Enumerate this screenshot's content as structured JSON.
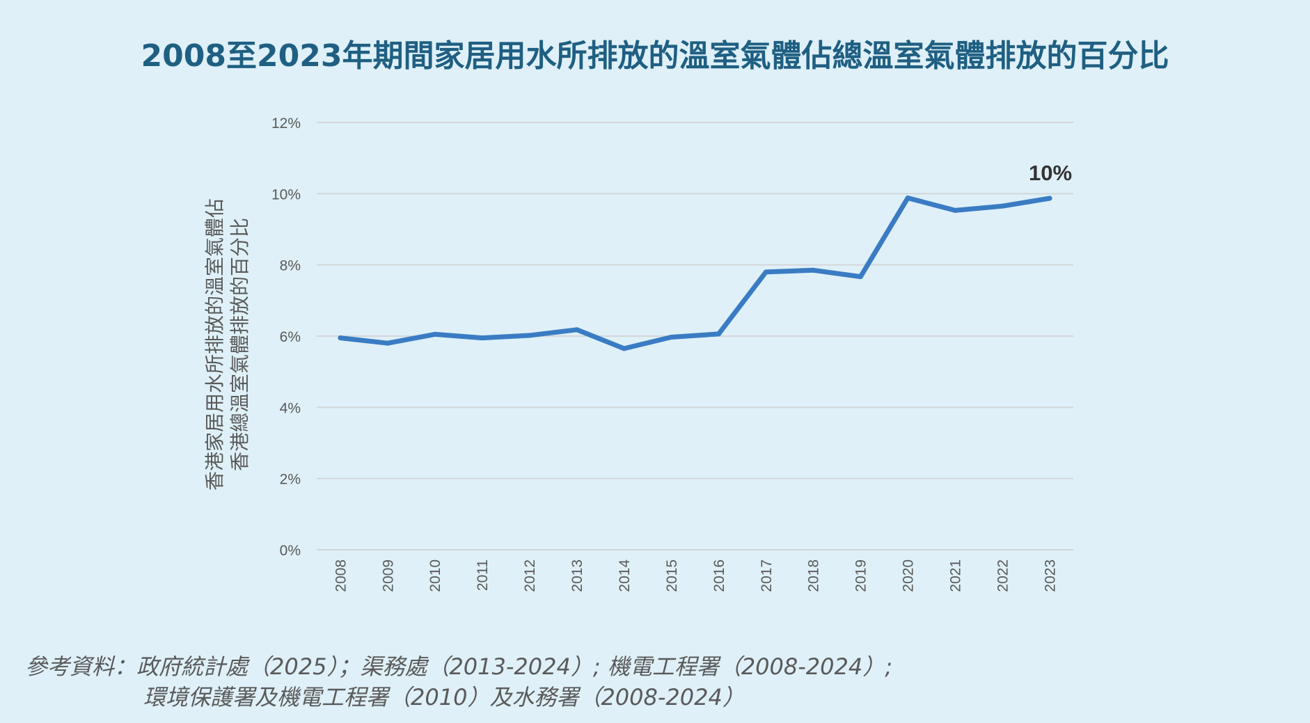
{
  "title": "2008至2023年期間家居用水所排放的溫室氣體佔總溫室氣體排放的百分比",
  "source": {
    "line1": "參考資料：政府統計處（2025）；渠務處（2013-2024）; 機電工程署（2008-2024）;",
    "line2": "環境保護署及機電工程署（2010）及水務署（2008-2024）"
  },
  "colors": {
    "background": "#dff0f8",
    "title": "#1f5f82",
    "line": "#3a7cc3",
    "grid": "#d3d6d9"
  },
  "chart_data": {
    "type": "line",
    "title": "2008至2023年期間家居用水所排放的溫室氣體佔總溫室氣體排放的百分比",
    "xlabel": "",
    "ylabel_lines": [
      "香港家居用水所排放的溫室氣體佔",
      "香港總溫室氣體排放的百分比"
    ],
    "categories": [
      "2008",
      "2009",
      "2010",
      "2011",
      "2012",
      "2013",
      "2014",
      "2015",
      "2016",
      "2017",
      "2018",
      "2019",
      "2020",
      "2021",
      "2022",
      "2023"
    ],
    "series": [
      {
        "values": [
          5.95,
          5.8,
          6.05,
          5.95,
          6.02,
          6.18,
          5.65,
          5.97,
          6.06,
          7.8,
          7.85,
          7.67,
          9.88,
          9.53,
          9.65,
          9.87
        ]
      }
    ],
    "ylim": [
      0,
      12
    ],
    "yticks": [
      0,
      2,
      4,
      6,
      8,
      10,
      12
    ],
    "ytick_labels": [
      "0%",
      "2%",
      "4%",
      "6%",
      "8%",
      "10%",
      "12%"
    ],
    "grid": true,
    "legend": "none",
    "annotations": [
      {
        "category": "2023",
        "text": "10%"
      }
    ]
  }
}
